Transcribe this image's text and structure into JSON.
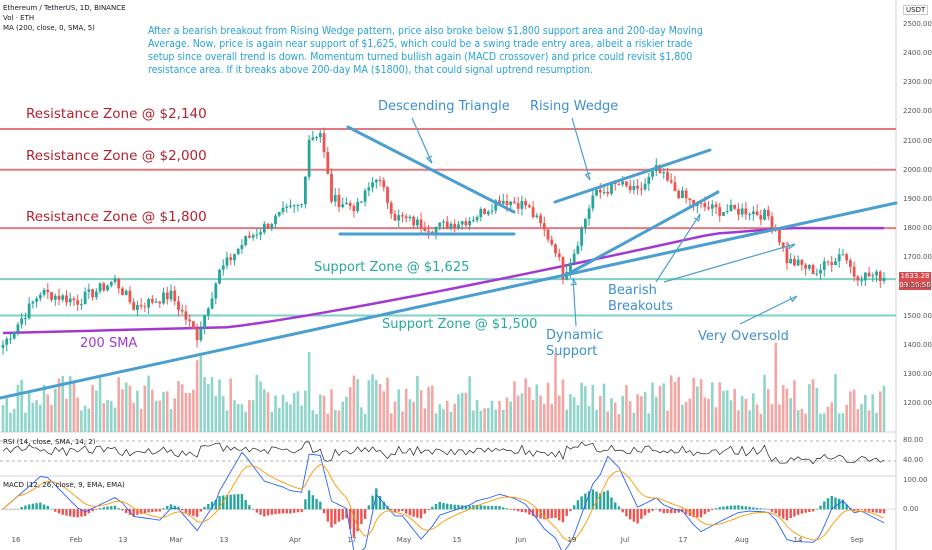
{
  "header": {
    "symbol_line": "Ethereum / TetherUS, 1D, BINANCE",
    "vol_line": "Vol · ETH",
    "ma_line": "MA (200, close, 0, SMA, 5)"
  },
  "annotation_text": "After a bearish breakout from Rising Wedge pattern, price also broke below $1,800 support area and 200-day Moving Average. Now, price is again near support of $1,625, which could be a swing trade entry area, albeit a riskier trade setup since overall trend is down. Momentum turned bullish again (MACD crossover) and price could revisit $1,800 resistance area. If it breaks above 200-day MA ($1800), that could signal uptrend resumption.",
  "labels": {
    "res_2140": "Resistance Zone @ $2,140",
    "res_2000": "Resistance Zone @ $2,000",
    "res_1800": "Resistance Zone @ $1,800",
    "sup_1625": "Support Zone @ $1,625",
    "sup_1500": "Support Zone @ $1,500",
    "sma200": "200 SMA",
    "desc_triangle": "Descending Triangle",
    "rising_wedge": "Rising Wedge",
    "bearish_breakouts": "Bearish\nBreakouts",
    "dynamic_support": "Dynamic\nSupport",
    "very_oversold": "Very Oversold"
  },
  "rsi_label": "RSI (14, close, SMA, 14, 2)",
  "macd_label": "MACD (12, 26, close, 9, EMA, EMA)",
  "currency": "USDT",
  "last_price": "1633.28",
  "countdown": "09:20:56",
  "colors": {
    "up": "#26a69a",
    "down": "#ef5350",
    "resistance": "#b2222f",
    "support": "#26a69a",
    "trendline": "#4a9fd0",
    "sma": "#a23ad0",
    "annotation": "#2aa3d6"
  },
  "chart_data": {
    "type": "candlestick",
    "x_ticks": [
      "16",
      "Feb",
      "13",
      "Mar",
      "13",
      "Apr",
      "17",
      "May",
      "15",
      "Jun",
      "19",
      "Jul",
      "17",
      "Aug",
      "14",
      "Sep"
    ],
    "y_ticks": [
      2500,
      2400,
      2300,
      2200,
      2100,
      2000,
      1900,
      1800,
      1700,
      1600,
      1500,
      1400,
      1300,
      1200
    ],
    "ylim": [
      1200,
      2500
    ],
    "price_path": [
      [
        0,
        1400
      ],
      [
        10,
        1580
      ],
      [
        20,
        1550
      ],
      [
        30,
        1620
      ],
      [
        35,
        1530
      ],
      [
        45,
        1570
      ],
      [
        52,
        1430
      ],
      [
        58,
        1650
      ],
      [
        65,
        1760
      ],
      [
        75,
        1850
      ],
      [
        80,
        1880
      ],
      [
        82,
        2110
      ],
      [
        85,
        2130
      ],
      [
        88,
        1900
      ],
      [
        95,
        1870
      ],
      [
        100,
        1980
      ],
      [
        105,
        1840
      ],
      [
        115,
        1800
      ],
      [
        125,
        1830
      ],
      [
        130,
        1870
      ],
      [
        133,
        1900
      ],
      [
        140,
        1880
      ],
      [
        145,
        1790
      ],
      [
        148,
        1730
      ],
      [
        150,
        1640
      ],
      [
        153,
        1720
      ],
      [
        158,
        1910
      ],
      [
        165,
        1950
      ],
      [
        170,
        1920
      ],
      [
        175,
        2000
      ],
      [
        180,
        1930
      ],
      [
        185,
        1880
      ],
      [
        192,
        1860
      ],
      [
        200,
        1860
      ],
      [
        205,
        1840
      ],
      [
        207,
        1800
      ],
      [
        210,
        1690
      ],
      [
        218,
        1650
      ],
      [
        225,
        1720
      ],
      [
        228,
        1640
      ],
      [
        236,
        1633
      ]
    ],
    "horizontal_levels": [
      {
        "price": 2140,
        "name": "Resistance Zone @ $2,140"
      },
      {
        "price": 2000,
        "name": "Resistance Zone @ $2,000"
      },
      {
        "price": 1800,
        "name": "Resistance Zone @ $1,800"
      },
      {
        "price": 1625,
        "name": "Support Zone @ $1,625"
      },
      {
        "price": 1500,
        "name": "Support Zone @ $1,500"
      }
    ],
    "last_price": 1633.28,
    "rsi": {
      "levels": [
        80,
        40
      ]
    },
    "macd": {
      "levels": [
        0
      ]
    }
  }
}
